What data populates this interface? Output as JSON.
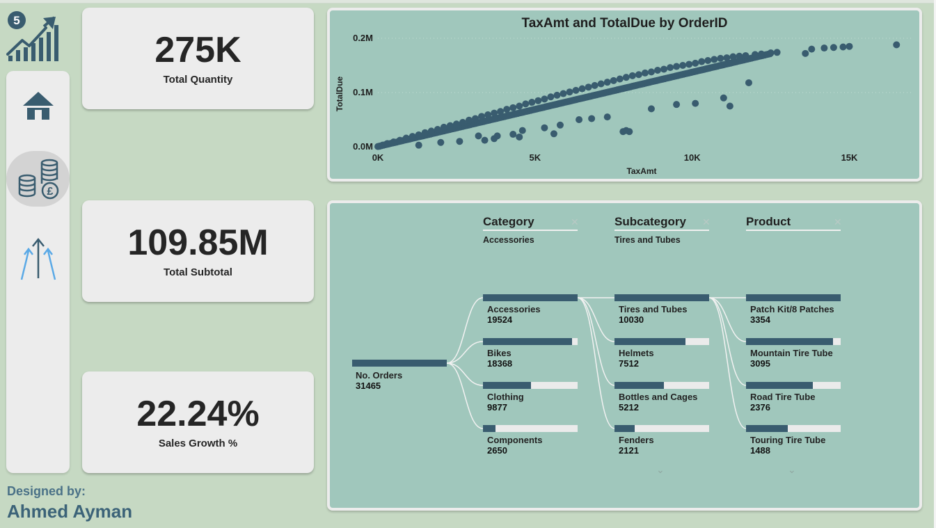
{
  "logo": {
    "badge": "5",
    "icon": "growth-chart-icon"
  },
  "nav": [
    {
      "name": "home",
      "icon": "home-icon",
      "active": false
    },
    {
      "name": "sales",
      "icon": "coins-pound-icon",
      "active": true
    },
    {
      "name": "growth",
      "icon": "arrows-up-icon",
      "active": false
    }
  ],
  "kpis": {
    "quantity": {
      "value": "275K",
      "label": "Total Quantity"
    },
    "subtotal": {
      "value": "109.85M",
      "label": "Total Subtotal"
    },
    "growth": {
      "value": "22.24%",
      "label": "Sales Growth %"
    }
  },
  "footer": {
    "designed_by": "Designed by:",
    "author": "Ahmed Ayman"
  },
  "colors": {
    "background": "#c6d9c3",
    "panel": "#a0c7bc",
    "accent": "#395c6f",
    "card": "#ececec"
  },
  "chart_data": {
    "type": "scatter",
    "title": "TaxAmt and TotalDue by OrderID",
    "xlabel": "TaxAmt",
    "ylabel": "TotalDue",
    "xlim": [
      0,
      18000
    ],
    "ylim": [
      0,
      0.2
    ],
    "x_ticks": [
      "0K",
      "5K",
      "10K",
      "15K"
    ],
    "y_ticks": [
      "0.0M",
      "0.1M",
      "0.2M"
    ],
    "grid": true,
    "series": [
      {
        "x": [
          50,
          150,
          300,
          500,
          700,
          900,
          1100,
          1300,
          1500,
          1700,
          1900,
          2100,
          2300,
          2500,
          2700,
          2900,
          3100,
          3300,
          3500,
          3700,
          3900,
          4100,
          4300,
          4500,
          4700,
          4900,
          5100,
          5300,
          5500,
          5700,
          5900,
          6100,
          6300,
          6500,
          6700,
          6900,
          7100,
          7300,
          7500,
          7700,
          7900,
          8100,
          8300,
          8500,
          8700,
          8900,
          9100,
          9300,
          9500,
          9700,
          9900,
          10100,
          10300,
          10500,
          10700,
          10900,
          11100,
          11300,
          11500,
          11700,
          12000,
          12200,
          12500,
          12700,
          13600,
          13800,
          14200,
          14500,
          14800,
          15000,
          16500,
          17900,
          1300,
          2000,
          2600,
          3200,
          3400,
          3700,
          4300,
          4600,
          5300,
          5800,
          5600,
          6800,
          6400,
          7300,
          7800,
          7900,
          8700,
          9500,
          10100,
          11000,
          11200,
          11800,
          3800,
          4500,
          8000
        ],
        "y": [
          0.001,
          0.003,
          0.006,
          0.009,
          0.012,
          0.016,
          0.019,
          0.022,
          0.026,
          0.029,
          0.032,
          0.036,
          0.039,
          0.042,
          0.045,
          0.049,
          0.052,
          0.056,
          0.059,
          0.062,
          0.065,
          0.069,
          0.072,
          0.075,
          0.079,
          0.082,
          0.085,
          0.088,
          0.092,
          0.095,
          0.098,
          0.101,
          0.104,
          0.107,
          0.11,
          0.113,
          0.116,
          0.119,
          0.122,
          0.125,
          0.128,
          0.131,
          0.133,
          0.136,
          0.138,
          0.141,
          0.143,
          0.146,
          0.148,
          0.15,
          0.152,
          0.154,
          0.157,
          0.159,
          0.161,
          0.163,
          0.164,
          0.166,
          0.167,
          0.168,
          0.17,
          0.171,
          0.173,
          0.174,
          0.172,
          0.18,
          0.182,
          0.183,
          0.184,
          0.185,
          0.188,
          0.19,
          0.003,
          0.008,
          0.01,
          0.02,
          0.012,
          0.015,
          0.023,
          0.03,
          0.035,
          0.04,
          0.024,
          0.052,
          0.05,
          0.055,
          0.028,
          0.03,
          0.07,
          0.078,
          0.08,
          0.09,
          0.075,
          0.118,
          0.02,
          0.018,
          0.028
        ]
      }
    ]
  },
  "decomp": {
    "columns": [
      {
        "header": "Category",
        "selected": "Accessories"
      },
      {
        "header": "Subcategory",
        "selected": "Tires and Tubes"
      },
      {
        "header": "Product",
        "selected": ""
      }
    ],
    "root": {
      "label": "No. Orders",
      "value": 31465
    },
    "levels": [
      [
        {
          "label": "Accessories",
          "value": 19524
        },
        {
          "label": "Bikes",
          "value": 18368
        },
        {
          "label": "Clothing",
          "value": 9877
        },
        {
          "label": "Components",
          "value": 2650
        }
      ],
      [
        {
          "label": "Tires and Tubes",
          "value": 10030
        },
        {
          "label": "Helmets",
          "value": 7512
        },
        {
          "label": "Bottles and Cages",
          "value": 5212
        },
        {
          "label": "Fenders",
          "value": 2121
        }
      ],
      [
        {
          "label": "Patch Kit/8 Patches",
          "value": 3354
        },
        {
          "label": "Mountain Tire Tube",
          "value": 3095
        },
        {
          "label": "Road Tire Tube",
          "value": 2376
        },
        {
          "label": "Touring Tire Tube",
          "value": 1488
        }
      ]
    ]
  }
}
